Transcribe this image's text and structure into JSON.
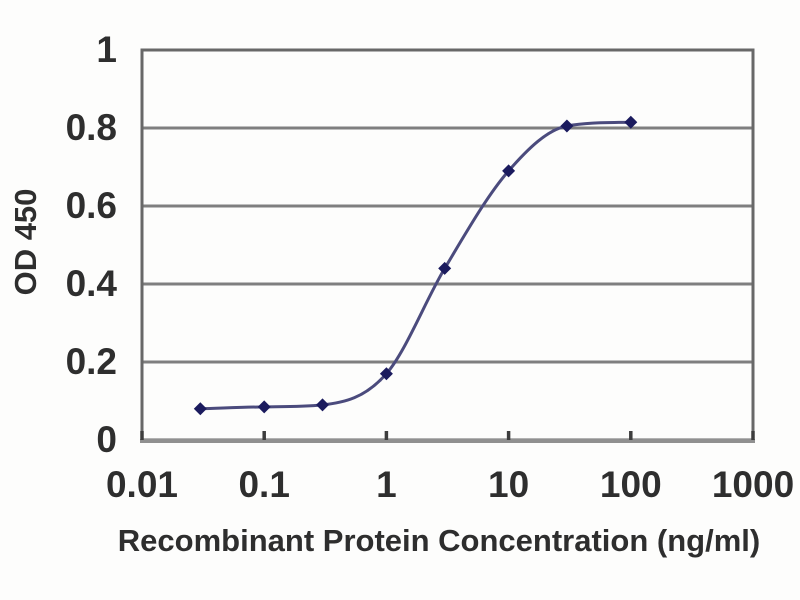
{
  "chart_data": {
    "type": "line",
    "x": [
      0.03,
      0.1,
      0.3,
      1,
      3,
      10,
      30,
      100
    ],
    "y": [
      0.08,
      0.085,
      0.09,
      0.17,
      0.44,
      0.69,
      0.805,
      0.815
    ],
    "title": "",
    "xlabel": "Recombinant Protein Concentration (ng/ml)",
    "ylabel": "OD 450",
    "xscale": "log",
    "xlim": [
      0.01,
      1000
    ],
    "ylim": [
      0,
      1
    ],
    "xticks": [
      0.01,
      0.1,
      1,
      10,
      100,
      1000
    ],
    "xtick_labels": [
      "0.01",
      "0.1",
      "1",
      "10",
      "100",
      "1000"
    ],
    "yticks": [
      0,
      0.2,
      0.4,
      0.6,
      0.8,
      1
    ],
    "ytick_labels": [
      "0",
      "0.2",
      "0.4",
      "0.6",
      "0.8",
      "1"
    ],
    "grid": "horizontal",
    "legend": false,
    "marker": "diamond",
    "colors": {
      "line": "#4b4b7d",
      "marker": "#1b1b5e",
      "grid": "#7f7f7f",
      "frame": "#686868",
      "axis_bottom": "#909090",
      "tick_mark": "#3d3d3d",
      "text": "#2e2e2e",
      "background": "#fdfdfc"
    }
  }
}
